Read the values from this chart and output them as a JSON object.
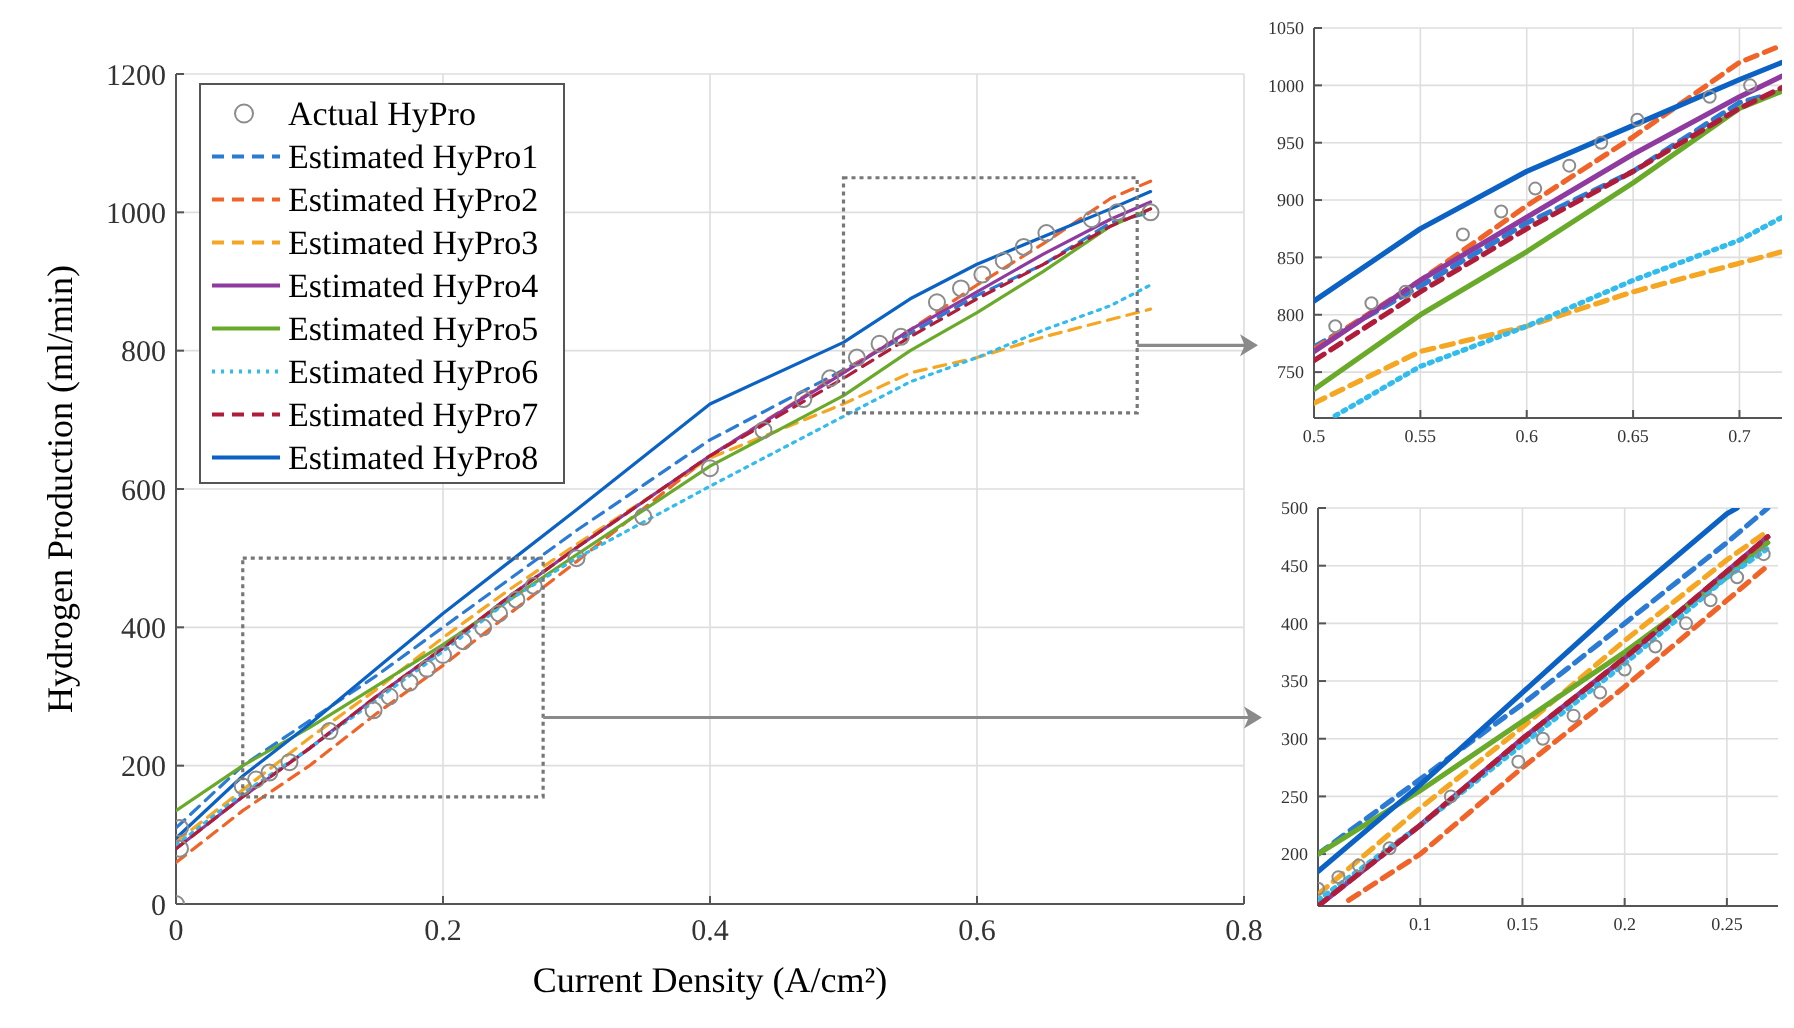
{
  "chart_data": [
    {
      "type": "line",
      "xlabel": "Current Density (A/cm²)",
      "ylabel": "Hydrogen Production (ml/min)",
      "xlim": [
        0,
        0.8
      ],
      "ylim": [
        0,
        1200
      ],
      "xticks": [
        0,
        0.2,
        0.4,
        0.6,
        0.8
      ],
      "yticks": [
        0,
        200,
        400,
        600,
        800,
        1000,
        1200
      ],
      "grid": true,
      "legend": "top left",
      "x": [
        0,
        0.05,
        0.1,
        0.15,
        0.2,
        0.25,
        0.3,
        0.4,
        0.5,
        0.55,
        0.6,
        0.65,
        0.7,
        0.73
      ],
      "series": [
        {
          "name": "Actual HyPro",
          "type": "scatter",
          "marker": "circle",
          "color": "#8c8c8c",
          "x": [
            0,
            0.003,
            0.003,
            0.05,
            0.06,
            0.07,
            0.085,
            0.115,
            0.148,
            0.16,
            0.175,
            0.188,
            0.2,
            0.215,
            0.23,
            0.242,
            0.255,
            0.268,
            0.3,
            0.35,
            0.4,
            0.44,
            0.47,
            0.49,
            0.51,
            0.527,
            0.543,
            0.57,
            0.588,
            0.604,
            0.62,
            0.635,
            0.652,
            0.686,
            0.705,
            0.73
          ],
          "values": [
            0,
            110,
            80,
            170,
            180,
            190,
            205,
            250,
            280,
            300,
            320,
            340,
            360,
            380,
            400,
            420,
            440,
            460,
            500,
            560,
            630,
            685,
            730,
            760,
            790,
            810,
            820,
            870,
            890,
            910,
            930,
            950,
            970,
            990,
            1000,
            1000
          ]
        },
        {
          "name": "Estimated HyPro1",
          "color": "#2b7bd4",
          "line_style": "dashed",
          "values": [
            110,
            200,
            265,
            330,
            400,
            470,
            540,
            671,
            772,
            825,
            880,
            925,
            985,
            1000
          ]
        },
        {
          "name": "Estimated HyPro2",
          "color": "#f0642a",
          "line_style": "dashed",
          "values": [
            60,
            135,
            200,
            275,
            345,
            420,
            495,
            648,
            770,
            830,
            895,
            955,
            1020,
            1045
          ]
        },
        {
          "name": "Estimated HyPro3",
          "color": "#f5a623",
          "line_style": "dashed",
          "values": [
            90,
            165,
            240,
            310,
            385,
            455,
            520,
            645,
            723,
            768,
            790,
            820,
            845,
            860
          ]
        },
        {
          "name": "Estimated HyPro4",
          "color": "#8e3a9e",
          "line_style": "solid",
          "values": [
            80,
            155,
            225,
            300,
            370,
            445,
            515,
            648,
            768,
            830,
            885,
            940,
            990,
            1015
          ]
        },
        {
          "name": "Estimated HyPro5",
          "color": "#6aaa2a",
          "line_style": "solid",
          "values": [
            135,
            200,
            255,
            315,
            375,
            440,
            505,
            633,
            735,
            800,
            855,
            915,
            980,
            1005
          ]
        },
        {
          "name": "Estimated HyPro6",
          "color": "#33bbee",
          "line_style": "dotted",
          "values": [
            85,
            160,
            225,
            295,
            365,
            440,
            500,
            604,
            705,
            755,
            790,
            830,
            865,
            895
          ]
        },
        {
          "name": "Estimated HyPro7",
          "color": "#b01d3a",
          "line_style": "dashed",
          "values": [
            80,
            155,
            225,
            300,
            370,
            445,
            515,
            648,
            760,
            820,
            875,
            925,
            980,
            1005
          ]
        },
        {
          "name": "Estimated HyPro8",
          "color": "#0b62c4",
          "line_style": "solid",
          "values": [
            95,
            185,
            260,
            340,
            420,
            495,
            570,
            723,
            812,
            875,
            925,
            965,
            1005,
            1030
          ]
        }
      ]
    },
    {
      "type": "line",
      "xlim": [
        0.5,
        0.72
      ],
      "ylim": [
        710,
        1050
      ],
      "xticks": [
        0.5,
        0.55,
        0.6,
        0.65,
        0.7
      ],
      "yticks": [
        750,
        800,
        850,
        900,
        950,
        1000,
        1050
      ],
      "grid": true,
      "x": [
        0.5,
        0.55,
        0.6,
        0.65,
        0.7,
        0.72
      ],
      "series": [
        {
          "type": "scatter",
          "marker": "circle",
          "color": "#8c8c8c",
          "x": [
            0.51,
            0.527,
            0.543,
            0.57,
            0.588,
            0.604,
            0.62,
            0.635,
            0.652,
            0.686,
            0.705
          ],
          "values": [
            790,
            810,
            820,
            870,
            890,
            910,
            930,
            950,
            970,
            990,
            1000
          ]
        },
        {
          "color": "#2b7bd4",
          "line_style": "dashed",
          "values": [
            772,
            825,
            880,
            925,
            985,
            995
          ]
        },
        {
          "color": "#f0642a",
          "line_style": "dashed",
          "values": [
            770,
            830,
            895,
            955,
            1020,
            1035
          ]
        },
        {
          "color": "#f5a623",
          "line_style": "dashed",
          "values": [
            723,
            768,
            790,
            820,
            845,
            855
          ]
        },
        {
          "color": "#8e3a9e",
          "line_style": "solid",
          "values": [
            768,
            830,
            885,
            940,
            990,
            1008
          ]
        },
        {
          "color": "#6aaa2a",
          "line_style": "solid",
          "values": [
            735,
            800,
            855,
            915,
            980,
            995
          ]
        },
        {
          "color": "#33bbee",
          "line_style": "dotted",
          "x": [
            0.51,
            0.55,
            0.6,
            0.65,
            0.7,
            0.72
          ],
          "values": [
            712,
            755,
            790,
            830,
            865,
            885
          ]
        },
        {
          "color": "#b01d3a",
          "line_style": "dashed",
          "values": [
            760,
            820,
            875,
            925,
            980,
            998
          ]
        },
        {
          "color": "#0b62c4",
          "line_style": "solid",
          "values": [
            812,
            875,
            925,
            965,
            1005,
            1020
          ]
        }
      ]
    },
    {
      "type": "line",
      "xlim": [
        0.05,
        0.275
      ],
      "ylim": [
        155,
        500
      ],
      "xticks": [
        0.1,
        0.15,
        0.2,
        0.25
      ],
      "yticks": [
        200,
        250,
        300,
        350,
        400,
        450,
        500
      ],
      "grid": true,
      "x": [
        0.05,
        0.1,
        0.15,
        0.2,
        0.25,
        0.27
      ],
      "series": [
        {
          "type": "scatter",
          "marker": "circle",
          "color": "#8c8c8c",
          "x": [
            0.05,
            0.06,
            0.07,
            0.085,
            0.115,
            0.148,
            0.16,
            0.175,
            0.188,
            0.2,
            0.215,
            0.23,
            0.242,
            0.255,
            0.268
          ],
          "values": [
            170,
            180,
            190,
            205,
            250,
            280,
            300,
            320,
            340,
            360,
            380,
            400,
            420,
            440,
            460
          ]
        },
        {
          "color": "#2b7bd4",
          "line_style": "dashed",
          "values": [
            200,
            265,
            330,
            400,
            470,
            500
          ]
        },
        {
          "color": "#f0642a",
          "line_style": "dashed",
          "x": [
            0.065,
            0.1,
            0.15,
            0.2,
            0.25,
            0.27
          ],
          "values": [
            160,
            200,
            275,
            345,
            420,
            450
          ]
        },
        {
          "color": "#f5a623",
          "line_style": "dashed",
          "values": [
            165,
            240,
            310,
            385,
            455,
            480
          ]
        },
        {
          "color": "#8e3a9e",
          "line_style": "solid",
          "values": [
            155,
            225,
            300,
            370,
            445,
            475
          ]
        },
        {
          "color": "#6aaa2a",
          "line_style": "solid",
          "values": [
            200,
            255,
            315,
            375,
            440,
            470
          ]
        },
        {
          "color": "#33bbee",
          "line_style": "dotted",
          "values": [
            160,
            225,
            295,
            365,
            440,
            465
          ]
        },
        {
          "color": "#b01d3a",
          "line_style": "dashed",
          "values": [
            155,
            225,
            300,
            370,
            445,
            475
          ]
        },
        {
          "color": "#0b62c4",
          "line_style": "solid",
          "x": [
            0.05,
            0.1,
            0.15,
            0.2,
            0.25,
            0.255
          ],
          "values": [
            185,
            260,
            340,
            420,
            495,
            500
          ]
        }
      ]
    }
  ]
}
